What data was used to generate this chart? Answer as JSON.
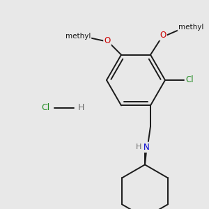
{
  "background_color": "#e8e8e8",
  "line_color": "#1a1a1a",
  "bond_width": 1.4,
  "atom_colors": {
    "O": "#cc0000",
    "N": "#0000cd",
    "Cl": "#228B22",
    "C": "#1a1a1a",
    "H": "#6a6a6a"
  }
}
